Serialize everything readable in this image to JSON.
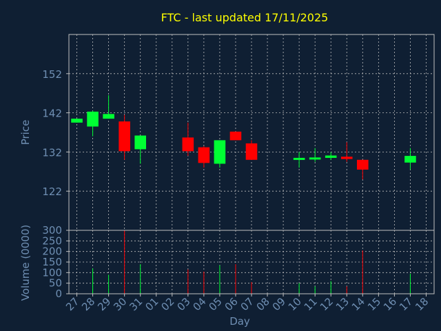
{
  "chart_data": [
    {
      "type": "candlestick",
      "title": "FTC - last updated 17/11/2025",
      "ylabel": "Price",
      "xlabel": "",
      "ylim": [
        112,
        162
      ],
      "yticks": [
        122,
        132,
        142,
        152
      ],
      "grid": true,
      "up_color": "#00ff33",
      "down_color": "#ff0000",
      "candles": [
        {
          "day": "27",
          "open": 139.5,
          "close": 140.5,
          "high": 140.5,
          "low": 139.5
        },
        {
          "day": "28",
          "open": 138.5,
          "close": 142.3,
          "high": 142.5,
          "low": 136.0
        },
        {
          "day": "29",
          "open": 140.5,
          "close": 141.7,
          "high": 146.5,
          "low": 140.5
        },
        {
          "day": "30",
          "open": 139.8,
          "close": 132.2,
          "high": 141.5,
          "low": 130.0
        },
        {
          "day": "31",
          "open": 132.7,
          "close": 136.2,
          "high": 136.2,
          "low": 129.0
        },
        {
          "day": "03",
          "open": 135.7,
          "close": 132.2,
          "high": 139.5,
          "low": 131.0
        },
        {
          "day": "04",
          "open": 133.2,
          "close": 129.2,
          "high": 133.5,
          "low": 128.0
        },
        {
          "day": "05",
          "open": 129.0,
          "close": 135.0,
          "high": 135.0,
          "low": 128.0
        },
        {
          "day": "06",
          "open": 137.2,
          "close": 135.0,
          "high": 137.2,
          "low": 135.0
        },
        {
          "day": "07",
          "open": 134.2,
          "close": 130.0,
          "high": 135.0,
          "low": 130.0
        },
        {
          "day": "10",
          "open": 130.0,
          "close": 130.5,
          "high": 132.0,
          "low": 128.0
        },
        {
          "day": "11",
          "open": 130.3,
          "close": 130.6,
          "high": 133.0,
          "low": 129.5
        },
        {
          "day": "12",
          "open": 130.5,
          "close": 131.1,
          "high": 132.0,
          "low": 130.0
        },
        {
          "day": "13",
          "open": 130.8,
          "close": 130.2,
          "high": 134.5,
          "low": 129.5
        },
        {
          "day": "14",
          "open": 130.0,
          "close": 127.5,
          "high": 130.0,
          "low": 125.0
        },
        {
          "day": "17",
          "open": 129.3,
          "close": 131.0,
          "high": 133.0,
          "low": 127.5
        }
      ]
    },
    {
      "type": "bar",
      "title": "",
      "ylabel": "Volume (0000)",
      "xlabel": "Day",
      "ylim": [
        0,
        300
      ],
      "yticks": [
        0,
        50,
        100,
        150,
        200,
        250,
        300
      ],
      "grid": true,
      "categories": [
        "27",
        "28",
        "29",
        "30",
        "31",
        "01",
        "02",
        "03",
        "04",
        "05",
        "06",
        "07",
        "08",
        "09",
        "10",
        "11",
        "12",
        "13",
        "14",
        "15",
        "16",
        "17",
        "18"
      ],
      "values": [
        0,
        120,
        90,
        300,
        140,
        0,
        0,
        115,
        105,
        135,
        140,
        55,
        0,
        0,
        50,
        35,
        60,
        35,
        205,
        0,
        0,
        95,
        0
      ],
      "bar_colors": [
        "#00ff33",
        "#00ff33",
        "#00ff33",
        "#ff0000",
        "#00ff33",
        "#00ff33",
        "#00ff33",
        "#ff0000",
        "#ff0000",
        "#00ff33",
        "#ff0000",
        "#ff0000",
        "#00ff33",
        "#00ff33",
        "#00ff33",
        "#00ff33",
        "#00ff33",
        "#ff0000",
        "#ff0000",
        "#00ff33",
        "#00ff33",
        "#00ff33",
        "#00ff33"
      ]
    }
  ],
  "colors": {
    "background": "#0f1f33",
    "axis": "#c0c0c0",
    "grid": "#c0c0c0",
    "title": "#ffff00",
    "label": "#6f8fb3"
  }
}
